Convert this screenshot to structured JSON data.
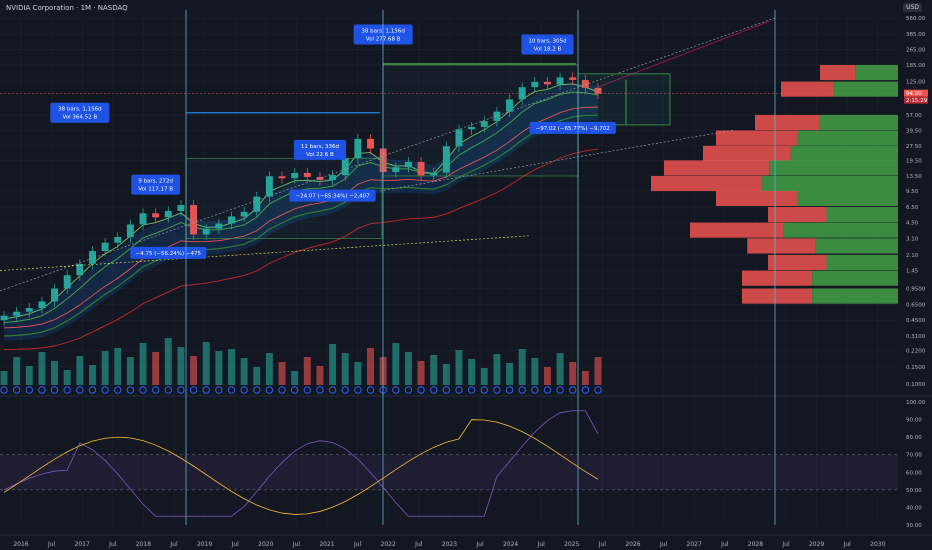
{
  "header": {
    "title": "NVIDIA Corporation · 1M · NASDAQ",
    "currency": "USD"
  },
  "chart_data": [
    {
      "type": "line",
      "name_visible": "price-panel",
      "scale": "log",
      "y_ticks": [
        "560.00",
        "385.00",
        "265.00",
        "185.00",
        "125.00",
        "57.00",
        "39.50",
        "27.50",
        "19.50",
        "13.50",
        "9.50",
        "6.50",
        "4.50",
        "3.10",
        "2.10",
        "1.45",
        "0.9500",
        "0.6500",
        "0.4500",
        "0.3100",
        "0.2200",
        "0.1500",
        "0.1000"
      ],
      "last_price_labels": [
        "94.00",
        "2:15:29"
      ],
      "x_ticks": [
        "2016",
        "Jul",
        "2017",
        "Jul",
        "2018",
        "Jul",
        "2019",
        "Jul",
        "2020",
        "Jul",
        "2021",
        "Jul",
        "2022",
        "Jul",
        "2023",
        "Jul",
        "2024",
        "Jul",
        "2025",
        "Jul",
        "2026",
        "Jul",
        "2027",
        "Jul",
        "2028",
        "Jul",
        "2029",
        "Jul",
        "2030"
      ],
      "close": [
        0.5,
        0.55,
        0.6,
        0.7,
        0.95,
        1.3,
        1.7,
        2.3,
        2.8,
        3.2,
        4.3,
        5.6,
        5.1,
        5.9,
        6.8,
        3.4,
        3.9,
        4.4,
        5.2,
        5.8,
        8.3,
        13.4,
        12.8,
        14.5,
        13.2,
        12.3,
        13.8,
        20.5,
        32.4,
        25.8,
        14.8,
        16.6,
        18.8,
        13.7,
        14.6,
        27.2,
        40.5,
        42.9,
        49.3,
        61.5,
        82.1,
        109.6,
        124.3,
        117.0,
        138.1,
        130.0,
        108.0,
        94.0
      ],
      "annotations": [
        {
          "lines": [
            "38 bars, 1,156d",
            "Vol 364.52 B"
          ],
          "x_idx": 6,
          "y_val": 60
        },
        {
          "lines": [
            "38 bars, 1,156d",
            "Vol 277.68 B"
          ],
          "x_idx": 30,
          "y_val": 380
        },
        {
          "lines": [
            "10 bars, 305d",
            "Vol 18.2 B"
          ],
          "x_idx": 43,
          "y_val": 300
        },
        {
          "lines": [
            "9 bars, 272d",
            "Vol 117.17 B"
          ],
          "x_idx": 12,
          "y_val": 11
        },
        {
          "lines": [
            "11 bars, 336d",
            "Vol 22.6 B"
          ],
          "x_idx": 25,
          "y_val": 25
        },
        {
          "lines": [
            "−24.07 (−65.34%) −2,407"
          ],
          "x_idx": 26,
          "y_val": 8.5
        },
        {
          "lines": [
            "−4.75 (−56.24%) −475"
          ],
          "x_idx": 13,
          "y_val": 2.2
        },
        {
          "lines": [
            "−97.02 (−65.77%) −9,702"
          ],
          "x_idx": 45,
          "y_val": 42
        }
      ]
    },
    {
      "type": "line",
      "name_visible": "oscillator-panel",
      "y_ticks": [
        "100.00",
        "90.00",
        "80.00",
        "70.00",
        "60.00",
        "50.00",
        "40.00",
        "30.00"
      ],
      "ylim": [
        25,
        105
      ]
    }
  ],
  "colors": {
    "background": "#131722",
    "bull": "#26a69a",
    "bear": "#ef5350",
    "grid": "#1e222d",
    "label_bg": "#1e53e5",
    "vline": "#5fb4d3"
  }
}
